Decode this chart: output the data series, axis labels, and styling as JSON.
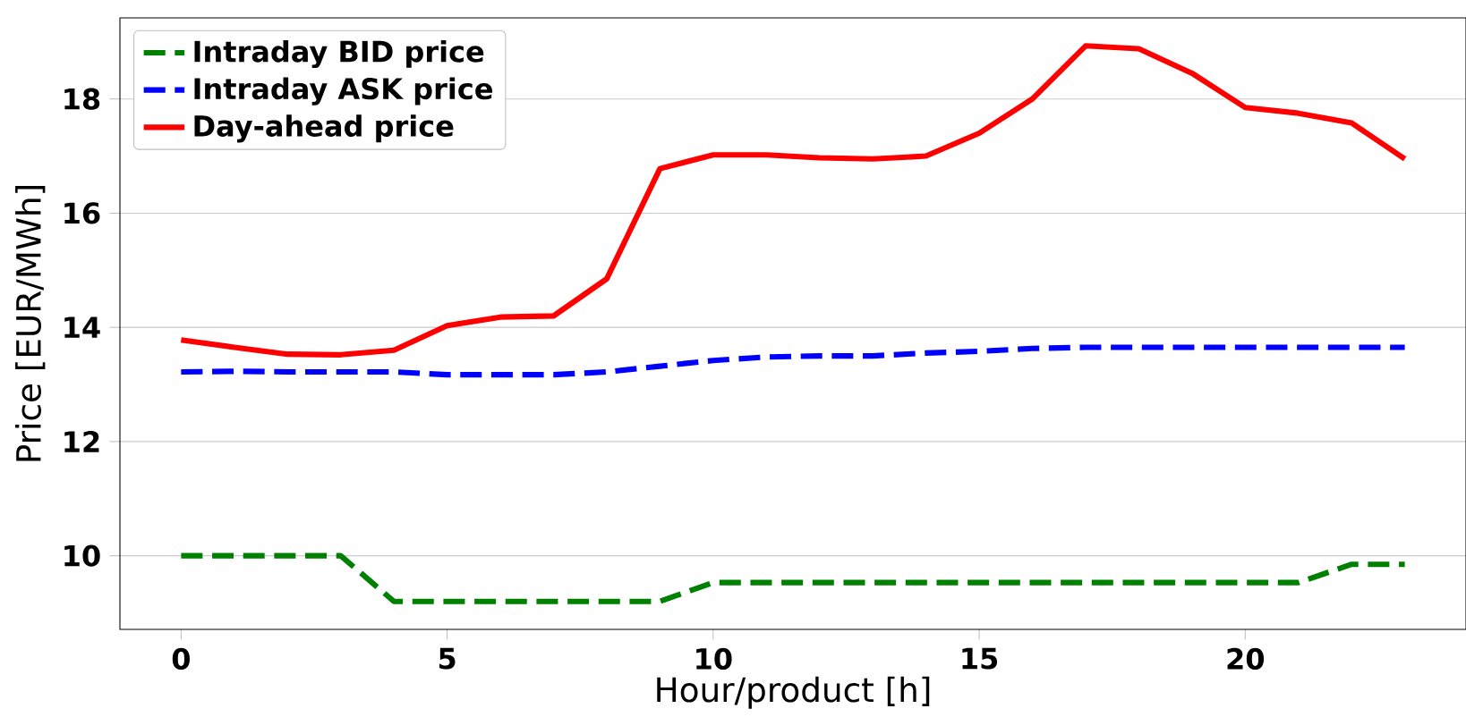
{
  "chart_data": {
    "type": "line",
    "xlabel": "Hour/product [h]",
    "ylabel": "Price [EUR/MWh]",
    "x": [
      0,
      1,
      2,
      3,
      4,
      5,
      6,
      7,
      8,
      9,
      10,
      11,
      12,
      13,
      14,
      15,
      16,
      17,
      18,
      19,
      20,
      21,
      22,
      23
    ],
    "series": [
      {
        "name": "Intraday BID price",
        "color": "#008000",
        "line_style": "dashed",
        "values": [
          10.0,
          10.0,
          10.0,
          10.0,
          9.2,
          9.2,
          9.2,
          9.2,
          9.2,
          9.2,
          9.53,
          9.53,
          9.53,
          9.53,
          9.53,
          9.53,
          9.53,
          9.53,
          9.53,
          9.53,
          9.53,
          9.53,
          9.85,
          9.85
        ]
      },
      {
        "name": "Intraday ASK price",
        "color": "#0000ff",
        "line_style": "dashed",
        "values": [
          13.22,
          13.23,
          13.22,
          13.22,
          13.22,
          13.17,
          13.17,
          13.17,
          13.22,
          13.32,
          13.42,
          13.48,
          13.5,
          13.5,
          13.55,
          13.58,
          13.63,
          13.65,
          13.65,
          13.65,
          13.65,
          13.65,
          13.65,
          13.65
        ]
      },
      {
        "name": "Day-ahead price",
        "color": "#ff0000",
        "line_style": "solid",
        "values": [
          13.78,
          13.65,
          13.53,
          13.52,
          13.6,
          14.03,
          14.18,
          14.2,
          14.85,
          16.78,
          17.02,
          17.02,
          16.97,
          16.95,
          17.0,
          17.4,
          18.0,
          18.93,
          18.88,
          18.45,
          17.85,
          17.75,
          17.58,
          16.95
        ]
      }
    ],
    "xlim": [
      -1.15,
      24.15
    ],
    "ylim": [
      8.71,
      19.42
    ],
    "xticks": [
      0,
      5,
      10,
      15,
      20
    ],
    "yticks": [
      10,
      12,
      14,
      16,
      18
    ],
    "grid": "y",
    "legend": "top left",
    "marker": "none"
  }
}
